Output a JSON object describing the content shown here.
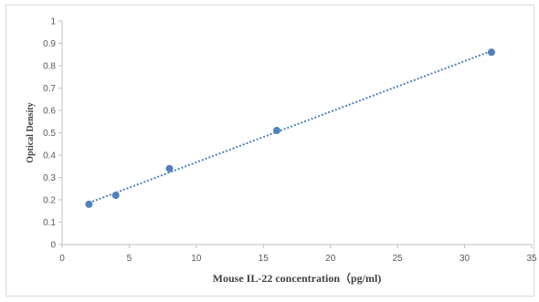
{
  "chart_data": {
    "type": "scatter",
    "title": "",
    "xlabel": "Mouse IL-22 concentration（pg/ml)",
    "ylabel": "Optical Density",
    "xlim": [
      0,
      35
    ],
    "ylim": [
      0,
      1
    ],
    "x_ticks": [
      "0",
      "5",
      "10",
      "15",
      "20",
      "25",
      "30",
      "35"
    ],
    "y_ticks": [
      "0",
      "0.1",
      "0.2",
      "0.3",
      "0.4",
      "0.5",
      "0.6",
      "0.7",
      "0.8",
      "0.9",
      "1"
    ],
    "grid": false,
    "legend": "none",
    "trendline": "linear (dotted)",
    "colors": {
      "points": "#4f81bd",
      "trendline": "#4f81bd",
      "axis": "#bfbfbf"
    },
    "series": [
      {
        "x": [
          2,
          4,
          8,
          16,
          32
        ],
        "y": [
          0.18,
          0.22,
          0.34,
          0.51,
          0.86
        ]
      }
    ]
  }
}
